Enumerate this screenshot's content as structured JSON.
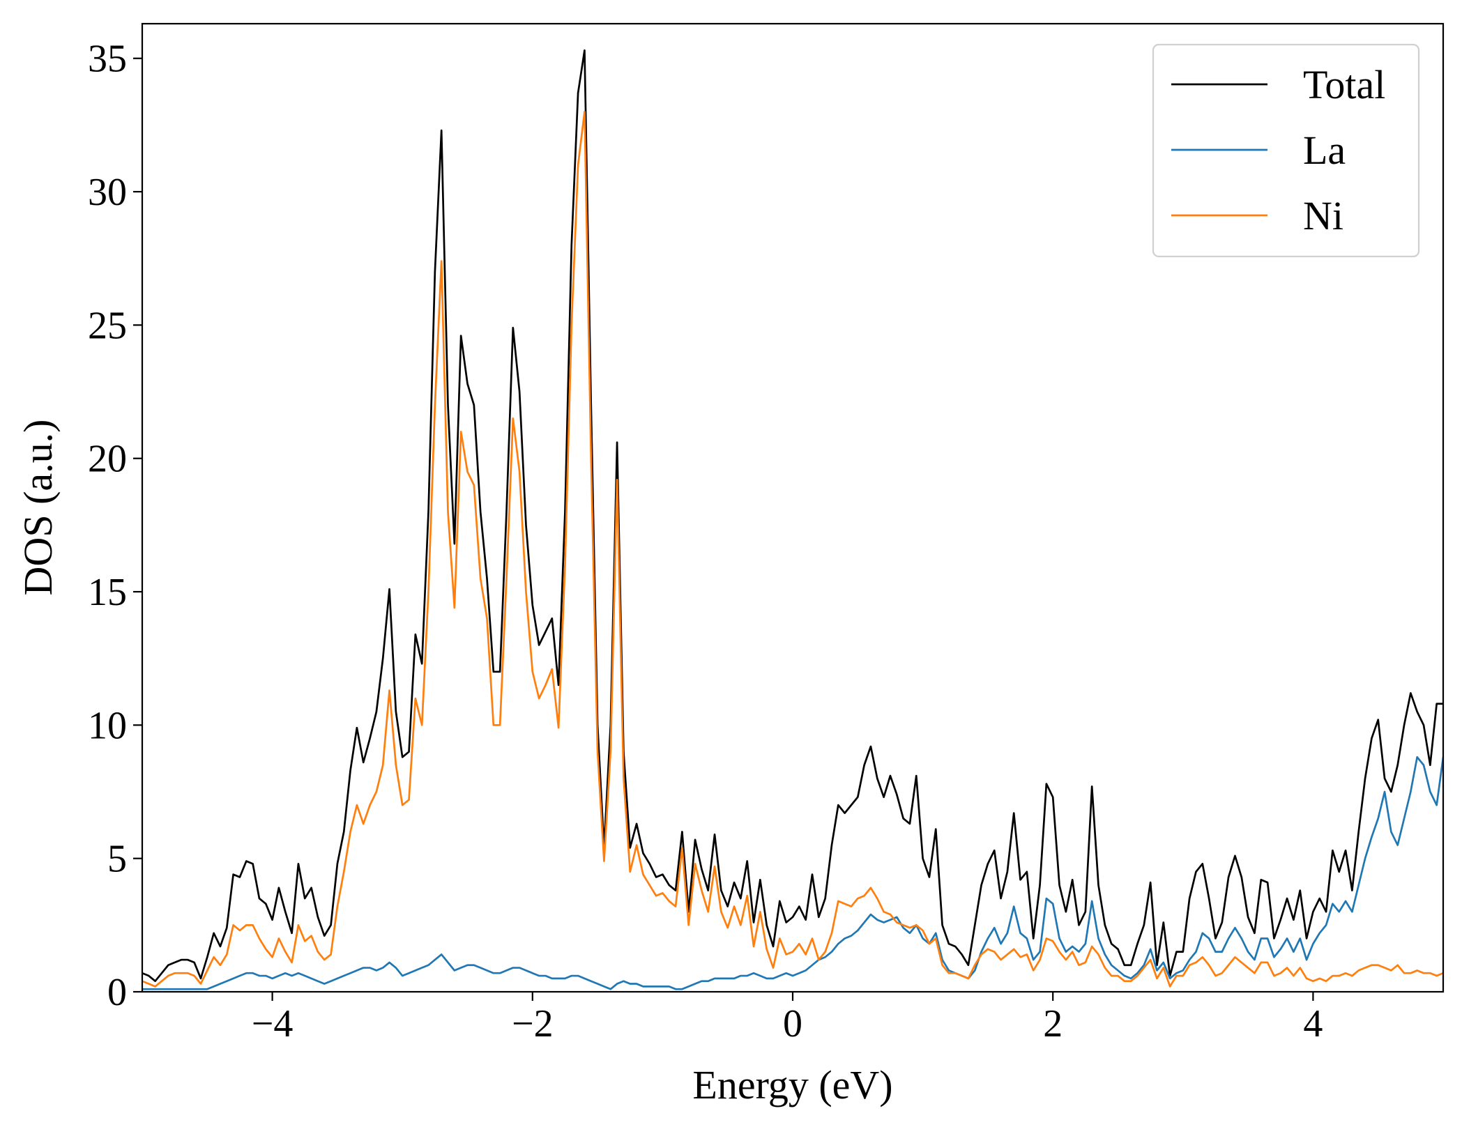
{
  "chart_data": {
    "type": "line",
    "xlabel": "Energy (eV)",
    "ylabel": "DOS (a.u.)",
    "xlim": [
      -5,
      5
    ],
    "ylim": [
      0,
      36.3
    ],
    "xticks": [
      {
        "value": -4,
        "label": "−4"
      },
      {
        "value": -2,
        "label": "−2"
      },
      0,
      2,
      4
    ],
    "yticks": [
      0,
      5,
      10,
      15,
      20,
      25,
      30,
      35
    ],
    "grid": false,
    "legend": "upper right",
    "x": [
      -5,
      -4.95,
      -4.9,
      -4.85,
      -4.8,
      -4.75,
      -4.7,
      -4.65,
      -4.6,
      -4.55,
      -4.5,
      -4.45,
      -4.4,
      -4.35,
      -4.3,
      -4.25,
      -4.2,
      -4.15,
      -4.1,
      -4.05,
      -4,
      -3.95,
      -3.9,
      -3.85,
      -3.8,
      -3.75,
      -3.7,
      -3.65,
      -3.6,
      -3.55,
      -3.5,
      -3.45,
      -3.4,
      -3.35,
      -3.3,
      -3.25,
      -3.2,
      -3.15,
      -3.1,
      -3.05,
      -3,
      -2.95,
      -2.9,
      -2.85,
      -2.8,
      -2.75,
      -2.7,
      -2.65,
      -2.6,
      -2.55,
      -2.5,
      -2.45,
      -2.4,
      -2.35,
      -2.3,
      -2.25,
      -2.2,
      -2.15,
      -2.1,
      -2.05,
      -2,
      -1.95,
      -1.9,
      -1.85,
      -1.8,
      -1.75,
      -1.7,
      -1.65,
      -1.6,
      -1.55,
      -1.5,
      -1.45,
      -1.4,
      -1.35,
      -1.3,
      -1.25,
      -1.2,
      -1.15,
      -1.1,
      -1.05,
      -1,
      -0.95,
      -0.9,
      -0.85,
      -0.8,
      -0.75,
      -0.7,
      -0.65,
      -0.6,
      -0.55,
      -0.5,
      -0.45,
      -0.4,
      -0.35,
      -0.3,
      -0.25,
      -0.2,
      -0.15,
      -0.1,
      -0.05,
      0,
      0.05,
      0.1,
      0.15,
      0.2,
      0.25,
      0.3,
      0.35,
      0.4,
      0.45,
      0.5,
      0.55,
      0.6,
      0.65,
      0.7,
      0.75,
      0.8,
      0.85,
      0.9,
      0.95,
      1,
      1.05,
      1.1,
      1.15,
      1.2,
      1.25,
      1.3,
      1.35,
      1.4,
      1.45,
      1.5,
      1.55,
      1.6,
      1.65,
      1.7,
      1.75,
      1.8,
      1.85,
      1.9,
      1.95,
      2,
      2.05,
      2.1,
      2.15,
      2.2,
      2.25,
      2.3,
      2.35,
      2.4,
      2.45,
      2.5,
      2.55,
      2.6,
      2.65,
      2.7,
      2.75,
      2.8,
      2.85,
      2.9,
      2.95,
      3,
      3.05,
      3.1,
      3.15,
      3.2,
      3.25,
      3.3,
      3.35,
      3.4,
      3.45,
      3.5,
      3.55,
      3.6,
      3.65,
      3.7,
      3.75,
      3.8,
      3.85,
      3.9,
      3.95,
      4,
      4.05,
      4.1,
      4.15,
      4.2,
      4.25,
      4.3,
      4.35,
      4.4,
      4.45,
      4.5,
      4.55,
      4.6,
      4.65,
      4.7,
      4.75,
      4.8,
      4.85,
      4.9,
      4.95,
      5
    ],
    "series": [
      {
        "name": "Total",
        "color": "#000000",
        "values": [
          0.7,
          0.6,
          0.4,
          0.7,
          1.0,
          1.1,
          1.2,
          1.2,
          1.1,
          0.5,
          1.3,
          2.2,
          1.7,
          2.4,
          4.4,
          4.3,
          4.9,
          4.8,
          3.5,
          3.3,
          2.7,
          3.9,
          3.0,
          2.2,
          4.8,
          3.5,
          3.9,
          2.8,
          2.1,
          2.5,
          4.8,
          6.0,
          8.3,
          9.9,
          8.6,
          9.5,
          10.5,
          12.5,
          15.1,
          10.5,
          8.8,
          9.0,
          13.4,
          12.3,
          18.0,
          27.0,
          32.3,
          22.0,
          16.8,
          24.6,
          22.8,
          22.0,
          18.0,
          15.5,
          12.0,
          12.0,
          18.0,
          24.9,
          22.5,
          17.5,
          14.5,
          13.0,
          13.5,
          14.0,
          11.5,
          18.0,
          28.0,
          33.7,
          35.3,
          22.0,
          10.0,
          5.4,
          10.0,
          20.6,
          9.0,
          5.4,
          6.3,
          5.2,
          4.8,
          4.3,
          4.4,
          4.0,
          3.8,
          6.0,
          3.0,
          5.7,
          4.6,
          3.8,
          5.9,
          3.8,
          3.2,
          4.1,
          3.5,
          4.9,
          2.6,
          4.2,
          2.5,
          1.7,
          3.4,
          2.6,
          2.8,
          3.2,
          2.7,
          4.4,
          2.8,
          3.5,
          5.5,
          7.0,
          6.7,
          7.0,
          7.3,
          8.5,
          9.2,
          8.0,
          7.3,
          8.1,
          7.4,
          6.5,
          6.3,
          8.1,
          5.0,
          4.3,
          6.1,
          2.5,
          1.8,
          1.7,
          1.4,
          1.0,
          2.5,
          4.0,
          4.8,
          5.3,
          3.5,
          4.5,
          6.7,
          4.2,
          4.5,
          2.0,
          4.0,
          7.8,
          7.3,
          4.0,
          3.0,
          4.2,
          2.5,
          3.0,
          7.7,
          4.0,
          2.5,
          1.8,
          1.6,
          1.0,
          1.0,
          1.8,
          2.5,
          4.1,
          1.0,
          2.6,
          0.6,
          1.5,
          1.5,
          3.5,
          4.5,
          4.8,
          3.5,
          2.0,
          2.6,
          4.3,
          5.1,
          4.3,
          2.8,
          2.2,
          4.2,
          4.1,
          2.0,
          2.7,
          3.5,
          2.7,
          3.8,
          2.0,
          3.0,
          3.5,
          3.0,
          5.3,
          4.5,
          5.3,
          3.8,
          6.0,
          8.0,
          9.5,
          10.2,
          8.0,
          7.5,
          8.5,
          10.0,
          11.2,
          10.5,
          10.0,
          8.5,
          10.8,
          10.8
        ]
      },
      {
        "name": "La",
        "color": "#1f77b4",
        "values": [
          0.1,
          0.1,
          0.1,
          0.1,
          0.1,
          0.1,
          0.1,
          0.1,
          0.1,
          0.1,
          0.1,
          0.2,
          0.3,
          0.4,
          0.5,
          0.6,
          0.7,
          0.7,
          0.6,
          0.6,
          0.5,
          0.6,
          0.7,
          0.6,
          0.7,
          0.6,
          0.5,
          0.4,
          0.3,
          0.4,
          0.5,
          0.6,
          0.7,
          0.8,
          0.9,
          0.9,
          0.8,
          0.9,
          1.1,
          0.9,
          0.6,
          0.7,
          0.8,
          0.9,
          1.0,
          1.2,
          1.4,
          1.1,
          0.8,
          0.9,
          1.0,
          1.0,
          0.9,
          0.8,
          0.7,
          0.7,
          0.8,
          0.9,
          0.9,
          0.8,
          0.7,
          0.6,
          0.6,
          0.5,
          0.5,
          0.5,
          0.6,
          0.6,
          0.5,
          0.4,
          0.3,
          0.2,
          0.1,
          0.3,
          0.4,
          0.3,
          0.3,
          0.2,
          0.2,
          0.2,
          0.2,
          0.2,
          0.1,
          0.1,
          0.2,
          0.3,
          0.4,
          0.4,
          0.5,
          0.5,
          0.5,
          0.5,
          0.6,
          0.6,
          0.7,
          0.6,
          0.5,
          0.5,
          0.6,
          0.7,
          0.6,
          0.7,
          0.8,
          1.0,
          1.2,
          1.3,
          1.5,
          1.8,
          2.0,
          2.1,
          2.3,
          2.6,
          2.9,
          2.7,
          2.6,
          2.7,
          2.8,
          2.4,
          2.2,
          2.5,
          2.0,
          1.8,
          2.2,
          1.2,
          0.8,
          0.7,
          0.6,
          0.5,
          0.8,
          1.5,
          2.0,
          2.4,
          1.8,
          2.2,
          3.2,
          2.2,
          2.0,
          1.2,
          1.5,
          3.5,
          3.3,
          2.0,
          1.5,
          1.7,
          1.5,
          1.8,
          3.4,
          2.0,
          1.4,
          1.0,
          0.8,
          0.6,
          0.5,
          0.7,
          1.0,
          1.6,
          0.8,
          1.1,
          0.5,
          0.7,
          0.8,
          1.2,
          1.5,
          2.2,
          2.0,
          1.5,
          1.5,
          2.0,
          2.4,
          2.0,
          1.5,
          1.2,
          2.0,
          2.0,
          1.3,
          1.6,
          2.0,
          1.5,
          2.0,
          1.2,
          1.8,
          2.2,
          2.5,
          3.3,
          3.0,
          3.4,
          3.0,
          4.0,
          5.0,
          5.8,
          6.5,
          7.5,
          6.0,
          5.5,
          6.5,
          7.5,
          8.8,
          8.5,
          7.5,
          7.0,
          8.8
        ]
      },
      {
        "name": "Ni",
        "color": "#ff7f0e",
        "values": [
          0.4,
          0.3,
          0.2,
          0.4,
          0.6,
          0.7,
          0.7,
          0.7,
          0.6,
          0.3,
          0.8,
          1.3,
          1.0,
          1.4,
          2.5,
          2.3,
          2.5,
          2.5,
          2.0,
          1.6,
          1.3,
          2.0,
          1.5,
          1.1,
          2.5,
          1.9,
          2.1,
          1.5,
          1.2,
          1.4,
          3.2,
          4.5,
          6.0,
          7.0,
          6.3,
          7.0,
          7.5,
          8.5,
          11.3,
          8.5,
          7.0,
          7.2,
          11.0,
          10.0,
          15.0,
          22.0,
          27.4,
          18.0,
          14.4,
          21.0,
          19.5,
          19.0,
          15.5,
          14.0,
          10.0,
          10.0,
          15.5,
          21.5,
          19.5,
          15.0,
          12.0,
          11.0,
          11.5,
          12.1,
          9.9,
          16.0,
          25.0,
          31.0,
          33.0,
          20.0,
          9.0,
          4.9,
          9.0,
          19.2,
          8.0,
          4.5,
          5.5,
          4.4,
          4.0,
          3.6,
          3.7,
          3.4,
          3.2,
          5.4,
          2.5,
          4.8,
          3.8,
          3.0,
          4.7,
          3.0,
          2.4,
          3.2,
          2.5,
          3.6,
          1.7,
          3.0,
          1.6,
          0.9,
          2.0,
          1.4,
          1.5,
          1.8,
          1.4,
          2.0,
          1.2,
          1.5,
          2.2,
          3.4,
          3.3,
          3.2,
          3.5,
          3.6,
          3.9,
          3.5,
          3.0,
          2.9,
          2.6,
          2.5,
          2.4,
          2.5,
          2.3,
          1.8,
          2.0,
          1.0,
          0.7,
          0.7,
          0.6,
          0.5,
          1.0,
          1.4,
          1.6,
          1.5,
          1.2,
          1.4,
          1.6,
          1.3,
          1.4,
          0.8,
          1.2,
          2.0,
          1.9,
          1.5,
          1.2,
          1.5,
          1.0,
          1.1,
          1.7,
          1.4,
          0.9,
          0.6,
          0.6,
          0.4,
          0.4,
          0.6,
          0.9,
          1.2,
          0.5,
          0.9,
          0.2,
          0.6,
          0.6,
          1.0,
          1.1,
          1.3,
          1.0,
          0.6,
          0.7,
          1.0,
          1.3,
          1.1,
          0.9,
          0.7,
          1.1,
          1.1,
          0.6,
          0.7,
          0.9,
          0.6,
          0.9,
          0.5,
          0.4,
          0.5,
          0.4,
          0.6,
          0.6,
          0.7,
          0.6,
          0.8,
          0.9,
          1.0,
          1.0,
          0.9,
          0.8,
          1.0,
          0.7,
          0.7,
          0.8,
          0.7,
          0.7,
          0.6,
          0.7
        ]
      }
    ]
  }
}
